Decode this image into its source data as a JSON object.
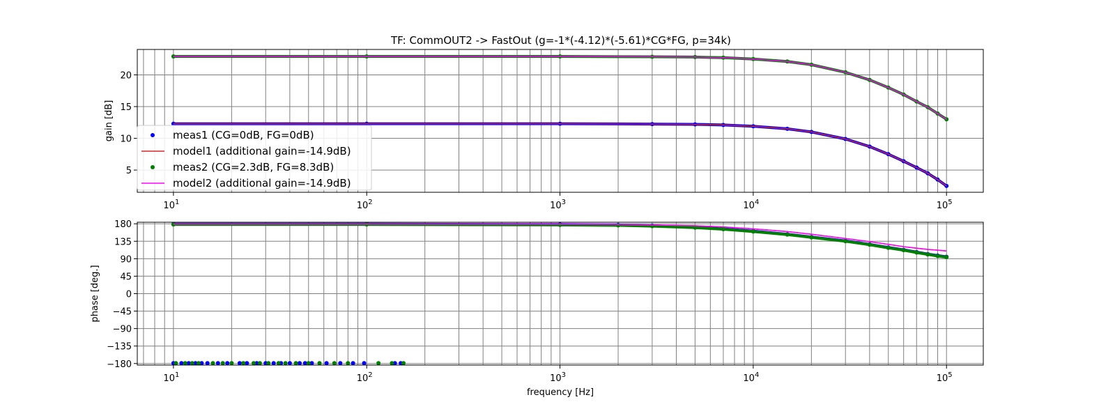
{
  "chart_data": [
    {
      "type": "line",
      "panel": "gain",
      "title": "TF: CommOUT2 -> FastOut (g=-1*(-4.12)*(-5.61)*CG*FG, p=34k)",
      "xlabel": "",
      "ylabel": "gain [dB]",
      "xscale": "log",
      "xlim": [
        6.5,
        155000
      ],
      "ylim": [
        1.5,
        24
      ],
      "grid": true,
      "x_ticks": [
        {
          "value": 10,
          "base": "10",
          "exp": "1"
        },
        {
          "value": 100,
          "base": "10",
          "exp": "2"
        },
        {
          "value": 1000,
          "base": "10",
          "exp": "3"
        },
        {
          "value": 10000,
          "base": "10",
          "exp": "4"
        },
        {
          "value": 100000,
          "base": "10",
          "exp": "5"
        }
      ],
      "y_ticks": [
        5,
        10,
        15,
        20
      ],
      "legend_position": "lower-left",
      "series": [
        {
          "name": "meas1 (CG=0dB, FG=0dB)",
          "style": "dots",
          "color": "#0000ff",
          "x": [
            10,
            100,
            1000,
            3000,
            5000,
            7000,
            10000,
            15000,
            20000,
            30000,
            40000,
            50000,
            60000,
            70000,
            80000,
            90000,
            100000
          ],
          "y": [
            12.3,
            12.3,
            12.3,
            12.25,
            12.2,
            12.1,
            11.9,
            11.5,
            11.0,
            9.9,
            8.7,
            7.5,
            6.4,
            5.4,
            4.5,
            3.5,
            2.5
          ]
        },
        {
          "name": "model1 (additional gain=-14.9dB)",
          "style": "line",
          "color": "#d62728",
          "x": [
            10,
            100,
            1000,
            3000,
            5000,
            7000,
            10000,
            15000,
            20000,
            30000,
            40000,
            50000,
            60000,
            70000,
            80000,
            90000,
            100000
          ],
          "y": [
            12.3,
            12.3,
            12.3,
            12.25,
            12.2,
            12.1,
            11.9,
            11.5,
            11.0,
            9.9,
            8.7,
            7.5,
            6.4,
            5.4,
            4.5,
            3.5,
            2.5
          ]
        },
        {
          "name": "meas2 (CG=2.3dB, FG=8.3dB)",
          "style": "dots",
          "color": "#008000",
          "x": [
            10,
            100,
            1000,
            3000,
            5000,
            7000,
            10000,
            15000,
            20000,
            30000,
            40000,
            50000,
            60000,
            70000,
            80000,
            90000,
            100000
          ],
          "y": [
            22.9,
            22.9,
            22.9,
            22.85,
            22.8,
            22.7,
            22.5,
            22.1,
            21.6,
            20.4,
            19.2,
            18.0,
            16.9,
            15.8,
            14.9,
            13.9,
            13.0
          ]
        },
        {
          "name": "model2 (additional gain=-14.9dB)",
          "style": "line",
          "color": "#ff00ff",
          "x": [
            10,
            100,
            1000,
            3000,
            5000,
            7000,
            10000,
            15000,
            20000,
            30000,
            40000,
            50000,
            60000,
            70000,
            80000,
            90000,
            100000
          ],
          "y": [
            22.9,
            22.9,
            22.9,
            22.85,
            22.8,
            22.7,
            22.5,
            22.1,
            21.6,
            20.4,
            19.2,
            18.0,
            16.9,
            15.8,
            14.9,
            13.9,
            13.0
          ]
        }
      ]
    },
    {
      "type": "line",
      "panel": "phase",
      "title": "",
      "xlabel": "frequency [Hz]",
      "ylabel": "phase [deg.]",
      "xscale": "log",
      "xlim": [
        6.5,
        155000
      ],
      "ylim": [
        -184,
        184
      ],
      "grid": true,
      "x_ticks": [
        {
          "value": 10,
          "base": "10",
          "exp": "1"
        },
        {
          "value": 100,
          "base": "10",
          "exp": "2"
        },
        {
          "value": 1000,
          "base": "10",
          "exp": "3"
        },
        {
          "value": 10000,
          "base": "10",
          "exp": "4"
        },
        {
          "value": 100000,
          "base": "10",
          "exp": "5"
        }
      ],
      "y_ticks": [
        -180,
        -135,
        -90,
        -45,
        0,
        45,
        90,
        135,
        180
      ],
      "series": [
        {
          "name": "meas1 (CG=0dB, FG=0dB)",
          "style": "dots",
          "color": "#0000ff",
          "x": [
            10,
            100,
            1000,
            2000,
            3000,
            5000,
            7000,
            10000,
            15000,
            20000,
            30000,
            40000,
            50000,
            60000,
            70000,
            80000,
            90000,
            100000
          ],
          "y": [
            179,
            179,
            178,
            177,
            175,
            171,
            167,
            161,
            153,
            146,
            136,
            127,
            119,
            113,
            107,
            102,
            98,
            95
          ]
        },
        {
          "name": "model1 (additional gain=-14.9dB)",
          "style": "line",
          "color": "#d62728",
          "x": [
            10,
            100,
            1000,
            2000,
            3000,
            5000,
            7000,
            10000,
            15000,
            20000,
            30000,
            40000,
            50000,
            60000,
            70000,
            80000,
            90000,
            100000
          ],
          "y": [
            179,
            179,
            179,
            178,
            177,
            175,
            172,
            167,
            160,
            153,
            142,
            134,
            127,
            121,
            117,
            114,
            112,
            110
          ]
        },
        {
          "name": "meas2 (CG=2.3dB, FG=8.3dB)",
          "style": "dots",
          "color": "#008000",
          "x": [
            10,
            100,
            1000,
            2000,
            3000,
            5000,
            7000,
            10000,
            15000,
            20000,
            30000,
            40000,
            50000,
            60000,
            70000,
            80000,
            90000,
            100000
          ],
          "y": [
            178,
            178,
            177,
            176,
            174,
            170,
            166,
            160,
            152,
            145,
            135,
            126,
            118,
            112,
            106,
            101,
            97,
            94
          ]
        },
        {
          "name": "model2 (additional gain=-14.9dB)",
          "style": "line",
          "color": "#ff00ff",
          "x": [
            10,
            100,
            1000,
            2000,
            3000,
            5000,
            7000,
            10000,
            15000,
            20000,
            30000,
            40000,
            50000,
            60000,
            70000,
            80000,
            90000,
            100000
          ],
          "y": [
            179,
            179,
            179,
            178,
            177,
            175,
            172,
            167,
            160,
            153,
            142,
            134,
            127,
            121,
            117,
            114,
            112,
            110
          ]
        },
        {
          "name": "meas1 (CG=0dB, FG=0dB)",
          "style": "dots",
          "color": "#0000ff",
          "x": [
            10,
            11,
            12,
            13,
            14,
            15,
            17,
            19,
            22,
            24,
            27,
            30,
            33,
            36,
            40,
            45,
            48,
            52,
            62,
            73,
            85,
            97,
            140,
            150
          ],
          "y": [
            -179,
            -179,
            -179,
            -179,
            -179,
            -179,
            -179,
            -179,
            -179,
            -179,
            -179,
            -179,
            -179,
            -179,
            -179,
            -179,
            -179,
            -179,
            -179,
            -179,
            -179,
            -179,
            -179,
            -179
          ]
        },
        {
          "name": "meas2 (CG=2.3dB, FG=8.3dB)",
          "style": "dots",
          "color": "#008000",
          "x": [
            10.3,
            11.5,
            12.5,
            13.5,
            16,
            18,
            20,
            23,
            26,
            28,
            31,
            35,
            38,
            43,
            50,
            57,
            68,
            80,
            115,
            135,
            155
          ],
          "y": [
            -179,
            -179,
            -179,
            -179,
            -179,
            -179,
            -179,
            -179,
            -179,
            -179,
            -179,
            -179,
            -179,
            -179,
            -179,
            -179,
            -179,
            -179,
            -179,
            -179,
            -179
          ]
        }
      ]
    }
  ]
}
